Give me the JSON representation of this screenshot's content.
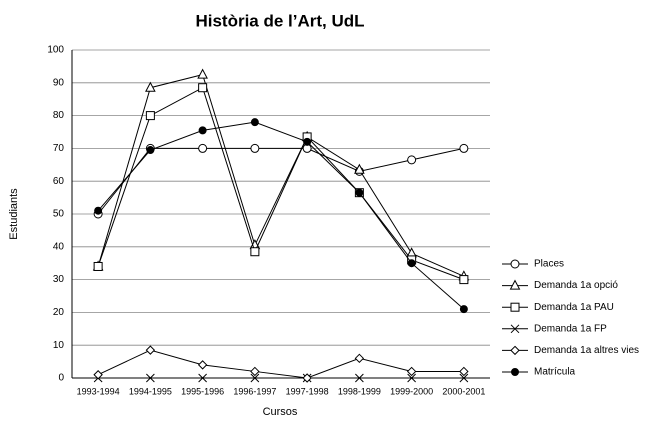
{
  "chart_data": {
    "type": "line",
    "title": "Història de l’Art, UdL",
    "x_label": "Cursos",
    "y_label": "Estudiants",
    "categories": [
      "1993-1994",
      "1994-1995",
      "1995-1996",
      "1996-1997",
      "1997-1998",
      "1998-1999",
      "1999-2000",
      "2000-2001"
    ],
    "series": [
      {
        "name": "Places",
        "color": "#000000",
        "marker": "circle",
        "values": [
          50,
          70,
          70,
          70,
          70,
          63,
          66.5,
          70
        ]
      },
      {
        "name": "Demanda 1a opció",
        "color": "#000000",
        "marker": "triangle",
        "values": [
          34,
          88.5,
          92.5,
          40.5,
          73.5,
          63.5,
          38,
          31
        ]
      },
      {
        "name": "Demanda 1a PAU",
        "color": "#000000",
        "marker": "square",
        "values": [
          34,
          80,
          88.5,
          38.5,
          73.5,
          56.5,
          36,
          30
        ]
      },
      {
        "name": "Demanda 1a FP",
        "color": "#000000",
        "marker": "x",
        "values": [
          0,
          0,
          0,
          0,
          0,
          0,
          0,
          0
        ]
      },
      {
        "name": "Demanda 1a altres vies",
        "color": "#000000",
        "marker": "diamond",
        "values": [
          1,
          8.5,
          4,
          2,
          0,
          6,
          2,
          2
        ]
      },
      {
        "name": "Matrícula",
        "color": "#000000",
        "marker": "filled-circle",
        "values": [
          51,
          69.5,
          75.5,
          78,
          72,
          56.5,
          35,
          21
        ]
      }
    ],
    "ylim": [
      0,
      100
    ],
    "yticks": [
      0,
      10,
      20,
      30,
      40,
      50,
      60,
      70,
      80,
      90,
      100
    ],
    "grid": true,
    "legend": "right"
  }
}
